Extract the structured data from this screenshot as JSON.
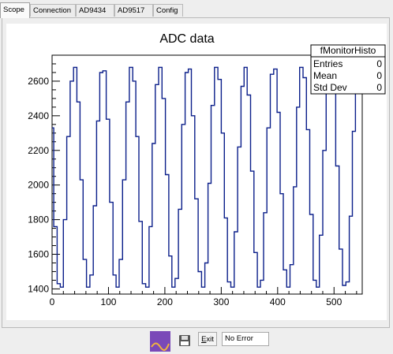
{
  "tabs": [
    {
      "label": "Scope",
      "active": true
    },
    {
      "label": "Connection",
      "active": false
    },
    {
      "label": "AD9434",
      "active": false
    },
    {
      "label": "AD9517",
      "active": false
    },
    {
      "label": "Config",
      "active": false
    }
  ],
  "stats_box": {
    "title": "fMonitorHisto",
    "rows": [
      {
        "label": "Entries",
        "value": "0"
      },
      {
        "label": "Mean",
        "value": "0"
      },
      {
        "label": "Std Dev",
        "value": "0"
      }
    ]
  },
  "chart_data": {
    "type": "line",
    "title": "ADC data",
    "xlabel": "",
    "ylabel": "",
    "xlim": [
      0,
      550
    ],
    "ylim": [
      1370,
      2750
    ],
    "xticks": [
      0,
      100,
      200,
      300,
      400,
      500
    ],
    "yticks": [
      1400,
      1600,
      1800,
      2000,
      2200,
      2400,
      2600
    ],
    "grid": false,
    "legend": "none",
    "color": "#0b1f8a",
    "series": [
      {
        "x": [
          0,
          6,
          12,
          17,
          23,
          29,
          35,
          41,
          47,
          52,
          58,
          64,
          70,
          76,
          82,
          87,
          93,
          99,
          105,
          111,
          116,
          122,
          128,
          134,
          140,
          146,
          151,
          157,
          163,
          169,
          175,
          180,
          186,
          192,
          198,
          204,
          210,
          215,
          221,
          227,
          233,
          239,
          244,
          250,
          256,
          262,
          268,
          274,
          279,
          285,
          291,
          297,
          303,
          308,
          314,
          320,
          326,
          332,
          338,
          343,
          349,
          355,
          361,
          367,
          372,
          378,
          384,
          390,
          396,
          402,
          407,
          413,
          419,
          425,
          431,
          436,
          442,
          448,
          454,
          460,
          466,
          471,
          477,
          483,
          489,
          495,
          500,
          506,
          512,
          518,
          524,
          530,
          535,
          541,
          547
        ],
        "y": [
          2330,
          1760,
          1430,
          1410,
          1800,
          2280,
          2600,
          2680,
          2480,
          2030,
          1570,
          1410,
          1480,
          1880,
          2370,
          2650,
          2660,
          2380,
          1900,
          1480,
          1410,
          1570,
          2030,
          2480,
          2680,
          2600,
          2280,
          1790,
          1430,
          1410,
          1760,
          2240,
          2580,
          2680,
          2500,
          2060,
          1590,
          1410,
          1460,
          1860,
          2350,
          2650,
          2670,
          2400,
          1920,
          1500,
          1410,
          1550,
          2010,
          2460,
          2680,
          2610,
          2300,
          1810,
          1440,
          1410,
          1730,
          2220,
          2570,
          2680,
          2520,
          2080,
          1610,
          1410,
          1450,
          1840,
          2330,
          2640,
          2670,
          2420,
          1950,
          1510,
          1410,
          1540,
          1990,
          2450,
          2680,
          2620,
          2320,
          1830,
          1450,
          1410,
          1710,
          2200,
          2560,
          2680,
          2540,
          2110,
          1630,
          1420,
          1440,
          1820,
          2310,
          2630,
          2670
        ]
      }
    ]
  },
  "bottom": {
    "canvas_icon": "root-canvas-icon",
    "save_icon": "floppy-disk-icon",
    "exit_label": "xit",
    "exit_mnemonic": "E",
    "status_text": "No Error"
  }
}
